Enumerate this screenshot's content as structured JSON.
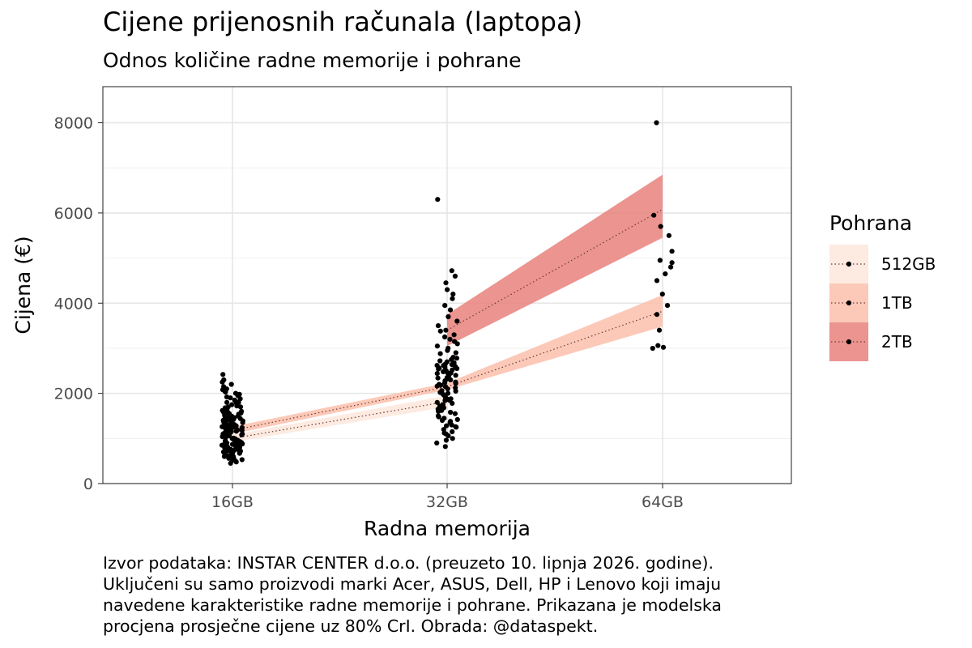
{
  "chart_data": {
    "type": "scatter",
    "title": "Cijene prijenosnih računala (laptopa)",
    "subtitle": "Odnos količine radne memorije i pohrane",
    "xlabel": "Radna memorija",
    "ylabel": "Cijena (€)",
    "categories": [
      "16GB",
      "32GB",
      "64GB"
    ],
    "ylim": [
      0,
      8800
    ],
    "yticks": [
      0,
      2000,
      4000,
      6000,
      8000
    ],
    "grid": true,
    "legend": {
      "title": "Pohrana",
      "position": "right",
      "entries": [
        "512GB",
        "1TB",
        "2TB"
      ]
    },
    "series": [
      {
        "name": "512GB",
        "color": "#fde6dc",
        "fit": [
          {
            "x": "16GB",
            "y": 1000,
            "lo": 920,
            "hi": 1080
          },
          {
            "x": "32GB",
            "y": 1820,
            "lo": 1700,
            "hi": 1950
          }
        ]
      },
      {
        "name": "1TB",
        "color": "#fcc0ac",
        "fit": [
          {
            "x": "16GB",
            "y": 1180,
            "lo": 1100,
            "hi": 1260
          },
          {
            "x": "32GB",
            "y": 2150,
            "lo": 2080,
            "hi": 2230
          },
          {
            "x": "64GB",
            "y": 3820,
            "lo": 3480,
            "hi": 4180
          }
        ]
      },
      {
        "name": "2TB",
        "color": "#e8817d",
        "fit": [
          {
            "x": "32GB",
            "y": 3400,
            "lo": 3050,
            "hi": 3750
          },
          {
            "x": "64GB",
            "y": 6080,
            "lo": 5450,
            "hi": 6850
          }
        ]
      }
    ],
    "points": [
      {
        "x": "16GB",
        "y": [
          520,
          560,
          600,
          620,
          650,
          680,
          700,
          720,
          740,
          760,
          780,
          800,
          820,
          850,
          870,
          900,
          920,
          950,
          980,
          1000,
          1020,
          1050,
          1080,
          1100,
          1120,
          1150,
          1180,
          1200,
          1220,
          1250,
          1280,
          1300,
          1320,
          1350,
          1380,
          1400,
          1420,
          1450,
          1480,
          1500,
          1520,
          1550,
          1580,
          1600,
          1650,
          1700,
          1750,
          1800,
          1850,
          1900,
          1950,
          2000,
          2050,
          2100,
          2200,
          2300,
          2420,
          450,
          480,
          500,
          530,
          560,
          580,
          610,
          640,
          670,
          690,
          710,
          730,
          750,
          770,
          790,
          810,
          830,
          860,
          880,
          910,
          930,
          960,
          990,
          1010,
          1040,
          1060,
          1090,
          1110,
          1140,
          1160,
          1190,
          1210,
          1240,
          1260,
          1290,
          1310,
          1340,
          1360,
          1390,
          1410,
          1440,
          1460,
          1490,
          1510,
          1540,
          1560,
          1590,
          1620,
          1680,
          1720,
          1780,
          1820,
          1880,
          1920,
          1980,
          2030,
          2080,
          2150,
          2250,
          600,
          700,
          800,
          900,
          1000,
          1100,
          1200,
          1300,
          1400,
          1500,
          1600,
          1700,
          1800,
          650,
          750,
          850,
          950,
          1050,
          1150,
          1250,
          1350
        ]
      },
      {
        "x": "32GB",
        "y": [
          820,
          900,
          1000,
          1100,
          1150,
          1200,
          1250,
          1300,
          1350,
          1400,
          1450,
          1500,
          1550,
          1600,
          1650,
          1700,
          1750,
          1800,
          1850,
          1900,
          1950,
          2000,
          2050,
          2100,
          2150,
          2200,
          2250,
          2300,
          2350,
          2400,
          2450,
          2500,
          2550,
          2600,
          2650,
          2700,
          2750,
          2800,
          2900,
          3000,
          3100,
          3200,
          3300,
          3400,
          3500,
          3600,
          3700,
          3850,
          3950,
          4100,
          4200,
          4300,
          4450,
          4600,
          4720,
          6300,
          1120,
          1280,
          1420,
          1580,
          1720,
          1880,
          2020,
          2180,
          2320,
          2480,
          2620,
          2780,
          2950,
          3050,
          3250,
          3380,
          1380,
          1620,
          1780,
          1980,
          2220,
          2420,
          2580,
          2680,
          2880,
          1680,
          1920,
          2120,
          2380,
          2540,
          2720,
          1880,
          2060,
          2280,
          2460,
          2620,
          2160,
          2340,
          2520,
          960,
          1060,
          1260,
          1480,
          1840,
          2040,
          2240,
          2440,
          2560,
          2640,
          3150
        ]
      },
      {
        "x": "64GB",
        "y": [
          3000,
          3020,
          3060,
          3400,
          3750,
          3950,
          4200,
          4500,
          4650,
          4800,
          4900,
          4950,
          5150,
          5500,
          5700,
          5950,
          8000
        ]
      }
    ]
  },
  "caption": {
    "lines": [
      "Izvor podataka: INSTAR CENTER d.o.o. (preuzeto 10. lipnja 2026. godine).",
      "Uključeni su samo proizvodi marki Acer, ASUS, Dell, HP i Lenovo koji imaju",
      "navedene karakteristike radne memorije i pohrane. Prikazana je modelska",
      "procjena prosječne cijene uz 80% CrI. Obrada: @dataspekt."
    ]
  }
}
